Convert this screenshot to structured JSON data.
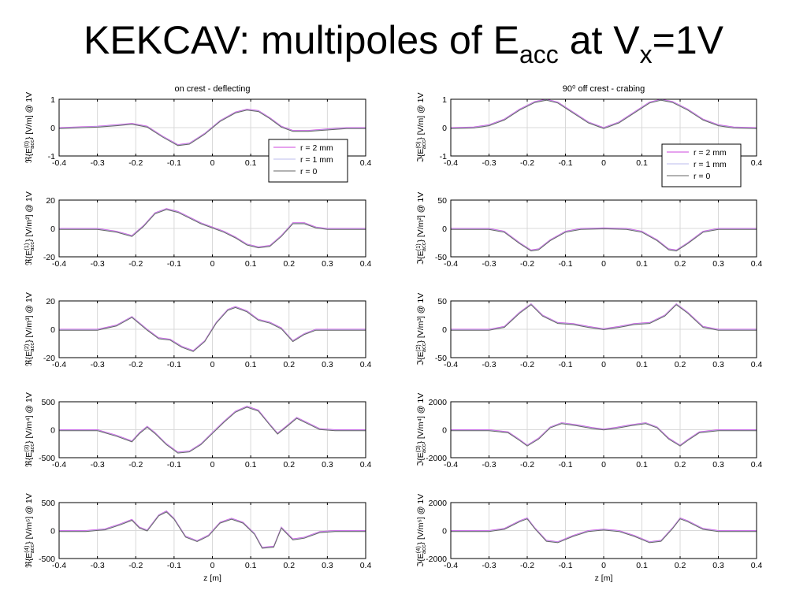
{
  "slide": {
    "title_main": "KEKCAV: multipoles of E",
    "title_sub_acc": "acc",
    "title_mid": " at V",
    "title_sub_x": "x",
    "title_end": "=1V"
  },
  "chart_data": [
    {
      "type": "line",
      "panel": "left-1",
      "title": "on crest - deflecting",
      "ylabel": "ℜ{E(0)acc} [V/m] @ 1V",
      "ylim": [
        -1,
        1
      ],
      "yticks": [
        -1,
        0,
        1
      ],
      "ytick_labels": [
        "-1",
        "0",
        "1"
      ],
      "xlim": [
        -0.4,
        0.4
      ],
      "xticks": [
        -0.4,
        -0.3,
        -0.2,
        -0.1,
        0,
        0.1,
        0.2,
        0.3,
        0.4
      ],
      "xtick_labels": [
        "-0.4",
        "-0.3",
        "-0.2",
        "-0.1",
        "0",
        "0.1",
        "0.2",
        "0.3",
        "0.4"
      ],
      "xlabel": "",
      "grid": true,
      "legend": {
        "position": "bottom-right",
        "entries": [
          "r = 2 mm",
          "r = 1 mm",
          "r = 0"
        ]
      },
      "series": [
        {
          "name": "r = 2 mm",
          "x": [
            -0.4,
            -0.3,
            -0.25,
            -0.21,
            -0.17,
            -0.13,
            -0.09,
            -0.06,
            -0.02,
            0.02,
            0.06,
            0.09,
            0.12,
            0.15,
            0.18,
            0.21,
            0.25,
            0.3,
            0.35,
            0.4
          ],
          "y": [
            0,
            0.05,
            0.1,
            0.15,
            0.05,
            -0.3,
            -0.6,
            -0.55,
            -0.2,
            0.25,
            0.55,
            0.65,
            0.6,
            0.35,
            0.05,
            -0.1,
            -0.1,
            -0.05,
            0,
            0
          ]
        }
      ]
    },
    {
      "type": "line",
      "panel": "left-2",
      "ylabel": "ℜ{E(1)acc} [V/m²] @ 1V",
      "ylim": [
        -20,
        20
      ],
      "yticks": [
        -20,
        0,
        20
      ],
      "ytick_labels": [
        "-20",
        "0",
        "20"
      ],
      "xlim": [
        -0.4,
        0.4
      ],
      "xticks": [
        -0.4,
        -0.3,
        -0.2,
        -0.1,
        0,
        0.1,
        0.2,
        0.3,
        0.4
      ],
      "xtick_labels": [
        "-0.4",
        "-0.3",
        "-0.2",
        "-0.1",
        "0",
        "0.1",
        "0.2",
        "0.3",
        "0.4"
      ],
      "xlabel": "",
      "grid": true,
      "series": [
        {
          "x": [
            -0.4,
            -0.3,
            -0.25,
            -0.21,
            -0.18,
            -0.15,
            -0.12,
            -0.09,
            -0.06,
            -0.03,
            0,
            0.03,
            0.06,
            0.09,
            0.12,
            0.15,
            0.18,
            0.21,
            0.24,
            0.27,
            0.3,
            0.35,
            0.4
          ],
          "y": [
            0,
            0,
            -2,
            -5,
            2,
            11,
            14,
            12,
            8,
            4,
            1,
            -2,
            -6,
            -11,
            -13,
            -12,
            -5,
            4,
            4,
            1,
            0,
            0,
            0
          ]
        }
      ]
    },
    {
      "type": "line",
      "panel": "left-3",
      "ylabel": "ℜ{E(2)acc} [V/m³] @ 1V",
      "ylim": [
        -20,
        20
      ],
      "yticks": [
        -20,
        0,
        20
      ],
      "ytick_labels": [
        "-20",
        "0",
        "20"
      ],
      "xlim": [
        -0.4,
        0.4
      ],
      "xticks": [
        -0.4,
        -0.3,
        -0.2,
        -0.1,
        0,
        0.1,
        0.2,
        0.3,
        0.4
      ],
      "xtick_labels": [
        "-0.4",
        "-0.3",
        "-0.2",
        "-0.1",
        "0",
        "0.1",
        "0.2",
        "0.3",
        "0.4"
      ],
      "xlabel": "",
      "grid": true,
      "series": [
        {
          "x": [
            -0.4,
            -0.3,
            -0.25,
            -0.21,
            -0.17,
            -0.14,
            -0.11,
            -0.08,
            -0.05,
            -0.02,
            0.01,
            0.04,
            0.06,
            0.09,
            0.12,
            0.15,
            0.18,
            0.21,
            0.24,
            0.27,
            0.3,
            0.35,
            0.4
          ],
          "y": [
            0,
            0,
            3,
            9,
            0,
            -6,
            -7,
            -12,
            -15,
            -8,
            5,
            14,
            16,
            13,
            7,
            5,
            1,
            -8,
            -3,
            0,
            0,
            0,
            0
          ]
        }
      ]
    },
    {
      "type": "line",
      "panel": "left-4",
      "ylabel": "ℜ{E(3)acc} [V/m⁴] @ 1V",
      "ylim": [
        -500,
        500
      ],
      "yticks": [
        -500,
        0,
        500
      ],
      "ytick_labels": [
        "-500",
        "0",
        "500"
      ],
      "xlim": [
        -0.4,
        0.4
      ],
      "xticks": [
        -0.4,
        -0.3,
        -0.2,
        -0.1,
        0,
        0.1,
        0.2,
        0.3,
        0.4
      ],
      "xtick_labels": [
        "-0.4",
        "-0.3",
        "-0.2",
        "-0.1",
        "0",
        "0.1",
        "0.2",
        "0.3",
        "0.4"
      ],
      "xlabel": "",
      "grid": true,
      "series": [
        {
          "x": [
            -0.4,
            -0.3,
            -0.25,
            -0.21,
            -0.19,
            -0.17,
            -0.15,
            -0.12,
            -0.09,
            -0.06,
            -0.03,
            0,
            0.03,
            0.06,
            0.09,
            0.12,
            0.15,
            0.17,
            0.19,
            0.22,
            0.25,
            0.28,
            0.32,
            0.4
          ],
          "y": [
            0,
            0,
            -100,
            -200,
            -50,
            60,
            -50,
            -250,
            -400,
            -380,
            -250,
            -50,
            150,
            330,
            420,
            350,
            100,
            -60,
            50,
            220,
            120,
            20,
            0,
            0
          ]
        }
      ]
    },
    {
      "type": "line",
      "panel": "left-5",
      "ylabel": "ℜ{E(4)acc} [V/m⁵] @ 1V",
      "ylim": [
        -500,
        500
      ],
      "yticks": [
        -500,
        0,
        500
      ],
      "ytick_labels": [
        "-500",
        "0",
        "500"
      ],
      "xlim": [
        -0.4,
        0.4
      ],
      "xticks": [
        -0.4,
        -0.3,
        -0.2,
        -0.1,
        0,
        0.1,
        0.2,
        0.3,
        0.4
      ],
      "xtick_labels": [
        "-0.4",
        "-0.3",
        "-0.2",
        "-0.1",
        "0",
        "0.1",
        "0.2",
        "0.3",
        "0.4"
      ],
      "xlabel": "z [m]",
      "grid": true,
      "series": [
        {
          "x": [
            -0.4,
            -0.33,
            -0.28,
            -0.24,
            -0.21,
            -0.19,
            -0.17,
            -0.14,
            -0.12,
            -0.1,
            -0.07,
            -0.04,
            -0.01,
            0.02,
            0.05,
            0.08,
            0.11,
            0.13,
            0.16,
            0.18,
            0.21,
            0.24,
            0.28,
            0.32,
            0.4
          ],
          "y": [
            0,
            0,
            30,
            120,
            200,
            60,
            10,
            280,
            350,
            220,
            -100,
            -180,
            -80,
            150,
            220,
            150,
            -50,
            -300,
            -280,
            60,
            -150,
            -120,
            -20,
            0,
            0
          ]
        }
      ]
    },
    {
      "type": "line",
      "panel": "right-1",
      "title": "90⁰ off crest - crabing",
      "ylabel": "ℑ{E(0)acc} [V/m] @ 1V",
      "ylim": [
        -1,
        1
      ],
      "yticks": [
        -1,
        0,
        1
      ],
      "ytick_labels": [
        "-1",
        "0",
        "1"
      ],
      "xlim": [
        -0.4,
        0.4
      ],
      "xticks": [
        -0.4,
        -0.3,
        -0.2,
        -0.1,
        0,
        0.1,
        0.2,
        0.3,
        0.4
      ],
      "xtick_labels": [
        "-0.4",
        "-0.3",
        "-0.2",
        "-0.1",
        "0",
        "0.1",
        "0.2",
        "0.3",
        "0.4"
      ],
      "xlabel": "",
      "grid": true,
      "legend": {
        "position": "bottom-right",
        "entries": [
          "r = 2 mm",
          "r = 1 mm",
          "r = 0"
        ]
      },
      "series": [
        {
          "name": "r = 2 mm",
          "x": [
            -0.4,
            -0.34,
            -0.3,
            -0.26,
            -0.22,
            -0.18,
            -0.15,
            -0.12,
            -0.08,
            -0.04,
            0,
            0.04,
            0.08,
            0.12,
            0.15,
            0.18,
            0.22,
            0.26,
            0.3,
            0.34,
            0.4
          ],
          "y": [
            0,
            0.02,
            0.1,
            0.3,
            0.65,
            0.92,
            1,
            0.9,
            0.55,
            0.2,
            0,
            0.2,
            0.55,
            0.9,
            1,
            0.92,
            0.65,
            0.3,
            0.1,
            0.02,
            0
          ]
        }
      ]
    },
    {
      "type": "line",
      "panel": "right-2",
      "ylabel": "ℑ{E(1)acc} [V/m²] @ 1V",
      "ylim": [
        -50,
        50
      ],
      "yticks": [
        -50,
        0,
        50
      ],
      "ytick_labels": [
        "-50",
        "0",
        "50"
      ],
      "xlim": [
        -0.4,
        0.4
      ],
      "xticks": [
        -0.4,
        -0.3,
        -0.2,
        -0.1,
        0,
        0.1,
        0.2,
        0.3,
        0.4
      ],
      "xtick_labels": [
        "-0.4",
        "-0.3",
        "-0.2",
        "-0.1",
        "0",
        "0.1",
        "0.2",
        "0.3",
        "0.4"
      ],
      "xlabel": "",
      "grid": true,
      "series": [
        {
          "x": [
            -0.4,
            -0.3,
            -0.26,
            -0.22,
            -0.19,
            -0.17,
            -0.14,
            -0.1,
            -0.06,
            0,
            0.06,
            0.1,
            0.14,
            0.17,
            0.19,
            0.22,
            0.26,
            0.3,
            0.4
          ],
          "y": [
            0,
            0,
            -5,
            -25,
            -38,
            -36,
            -20,
            -5,
            0,
            1,
            0,
            -5,
            -20,
            -36,
            -38,
            -25,
            -5,
            0,
            0
          ]
        }
      ]
    },
    {
      "type": "line",
      "panel": "right-3",
      "ylabel": "ℑ{E(2)acc} [V/m³] @ 1V",
      "ylim": [
        -50,
        50
      ],
      "yticks": [
        -50,
        0,
        50
      ],
      "ytick_labels": [
        "-50",
        "0",
        "50"
      ],
      "xlim": [
        -0.4,
        0.4
      ],
      "xticks": [
        -0.4,
        -0.3,
        -0.2,
        -0.1,
        0,
        0.1,
        0.2,
        0.3,
        0.4
      ],
      "xtick_labels": [
        "-0.4",
        "-0.3",
        "-0.2",
        "-0.1",
        "0",
        "0.1",
        "0.2",
        "0.3",
        "0.4"
      ],
      "xlabel": "",
      "grid": true,
      "series": [
        {
          "x": [
            -0.4,
            -0.3,
            -0.26,
            -0.22,
            -0.19,
            -0.16,
            -0.12,
            -0.08,
            -0.04,
            0,
            0.04,
            0.08,
            0.12,
            0.16,
            0.19,
            0.22,
            0.26,
            0.3,
            0.4
          ],
          "y": [
            0,
            0,
            5,
            30,
            45,
            25,
            12,
            10,
            5,
            1,
            5,
            10,
            12,
            25,
            45,
            30,
            5,
            0,
            0
          ]
        }
      ]
    },
    {
      "type": "line",
      "panel": "right-4",
      "ylabel": "ℑ{E(3)acc} [V/m⁴] @ 1V",
      "ylim": [
        -2000,
        2000
      ],
      "yticks": [
        -2000,
        0,
        2000
      ],
      "ytick_labels": [
        "-2000",
        "0",
        "2000"
      ],
      "xlim": [
        -0.4,
        0.4
      ],
      "xticks": [
        -0.4,
        -0.3,
        -0.2,
        -0.1,
        0,
        0.1,
        0.2,
        0.3,
        0.4
      ],
      "xtick_labels": [
        "-0.4",
        "-0.3",
        "-0.2",
        "-0.1",
        "0",
        "0.1",
        "0.2",
        "0.3",
        "0.4"
      ],
      "xlabel": "",
      "grid": true,
      "series": [
        {
          "x": [
            -0.4,
            -0.3,
            -0.25,
            -0.22,
            -0.2,
            -0.17,
            -0.14,
            -0.11,
            -0.07,
            -0.03,
            0,
            0.03,
            0.07,
            0.11,
            0.14,
            0.17,
            0.2,
            0.22,
            0.25,
            0.3,
            0.4
          ],
          "y": [
            0,
            0,
            -150,
            -700,
            -1100,
            -600,
            200,
            500,
            350,
            150,
            50,
            150,
            350,
            500,
            200,
            -600,
            -1100,
            -700,
            -150,
            0,
            0
          ]
        }
      ]
    },
    {
      "type": "line",
      "panel": "right-5",
      "ylabel": "ℑ{E(4)acc} [V/m⁵] @ 1V",
      "ylim": [
        -2000,
        2000
      ],
      "yticks": [
        -2000,
        0,
        2000
      ],
      "ytick_labels": [
        "-2000",
        "0",
        "2000"
      ],
      "xlim": [
        -0.4,
        0.4
      ],
      "xticks": [
        -0.4,
        -0.3,
        -0.2,
        -0.1,
        0,
        0.1,
        0.2,
        0.3,
        0.4
      ],
      "xtick_labels": [
        "-0.4",
        "-0.3",
        "-0.2",
        "-0.1",
        "0",
        "0.1",
        "0.2",
        "0.3",
        "0.4"
      ],
      "xlabel": "z [m]",
      "grid": true,
      "series": [
        {
          "x": [
            -0.4,
            -0.3,
            -0.26,
            -0.22,
            -0.2,
            -0.18,
            -0.15,
            -0.12,
            -0.08,
            -0.04,
            0,
            0.04,
            0.08,
            0.12,
            0.15,
            0.18,
            0.2,
            0.22,
            0.26,
            0.3,
            0.4
          ],
          "y": [
            0,
            0,
            150,
            700,
            900,
            200,
            -700,
            -800,
            -350,
            0,
            100,
            0,
            -350,
            -800,
            -700,
            200,
            900,
            700,
            150,
            0,
            0
          ]
        }
      ]
    }
  ]
}
